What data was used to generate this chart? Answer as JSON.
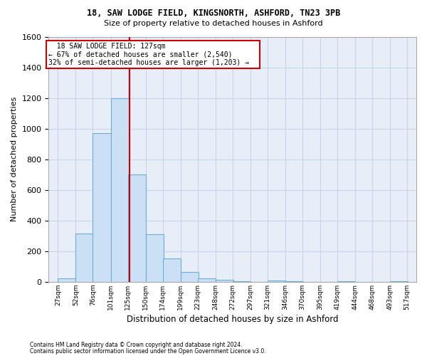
{
  "title1": "18, SAW LODGE FIELD, KINGSNORTH, ASHFORD, TN23 3PB",
  "title2": "Size of property relative to detached houses in Ashford",
  "xlabel": "Distribution of detached houses by size in Ashford",
  "ylabel": "Number of detached properties",
  "footnote1": "Contains HM Land Registry data © Crown copyright and database right 2024.",
  "footnote2": "Contains public sector information licensed under the Open Government Licence v3.0.",
  "annotation_title": "18 SAW LODGE FIELD: 127sqm",
  "annotation_line1": "← 67% of detached houses are smaller (2,540)",
  "annotation_line2": "32% of semi-detached houses are larger (1,203) →",
  "property_size": 127,
  "bar_color": "#cce0f5",
  "bar_edge_color": "#6aaed6",
  "vline_color": "#cc0000",
  "annotation_box_color": "#cc0000",
  "background_color": "#ffffff",
  "grid_color": "#c8d4e8",
  "bins_left": [
    27,
    52,
    76,
    101,
    125,
    150,
    174,
    199,
    223,
    248,
    272,
    297,
    321,
    346,
    370,
    395,
    419,
    444,
    468,
    493
  ],
  "bin_labels": [
    "27sqm",
    "52sqm",
    "76sqm",
    "101sqm",
    "125sqm",
    "150sqm",
    "174sqm",
    "199sqm",
    "223sqm",
    "248sqm",
    "272sqm",
    "297sqm",
    "321sqm",
    "346sqm",
    "370sqm",
    "395sqm",
    "419sqm",
    "444sqm",
    "468sqm",
    "493sqm",
    "517sqm"
  ],
  "bar_heights": [
    25,
    315,
    970,
    1200,
    700,
    310,
    155,
    65,
    25,
    15,
    5,
    0,
    10,
    5,
    0,
    0,
    5,
    0,
    0,
    5
  ],
  "bin_width": 25,
  "ylim": [
    0,
    1600
  ],
  "yticks": [
    0,
    200,
    400,
    600,
    800,
    1000,
    1200,
    1400,
    1600
  ],
  "xlim_left": 14,
  "xlim_right": 530
}
